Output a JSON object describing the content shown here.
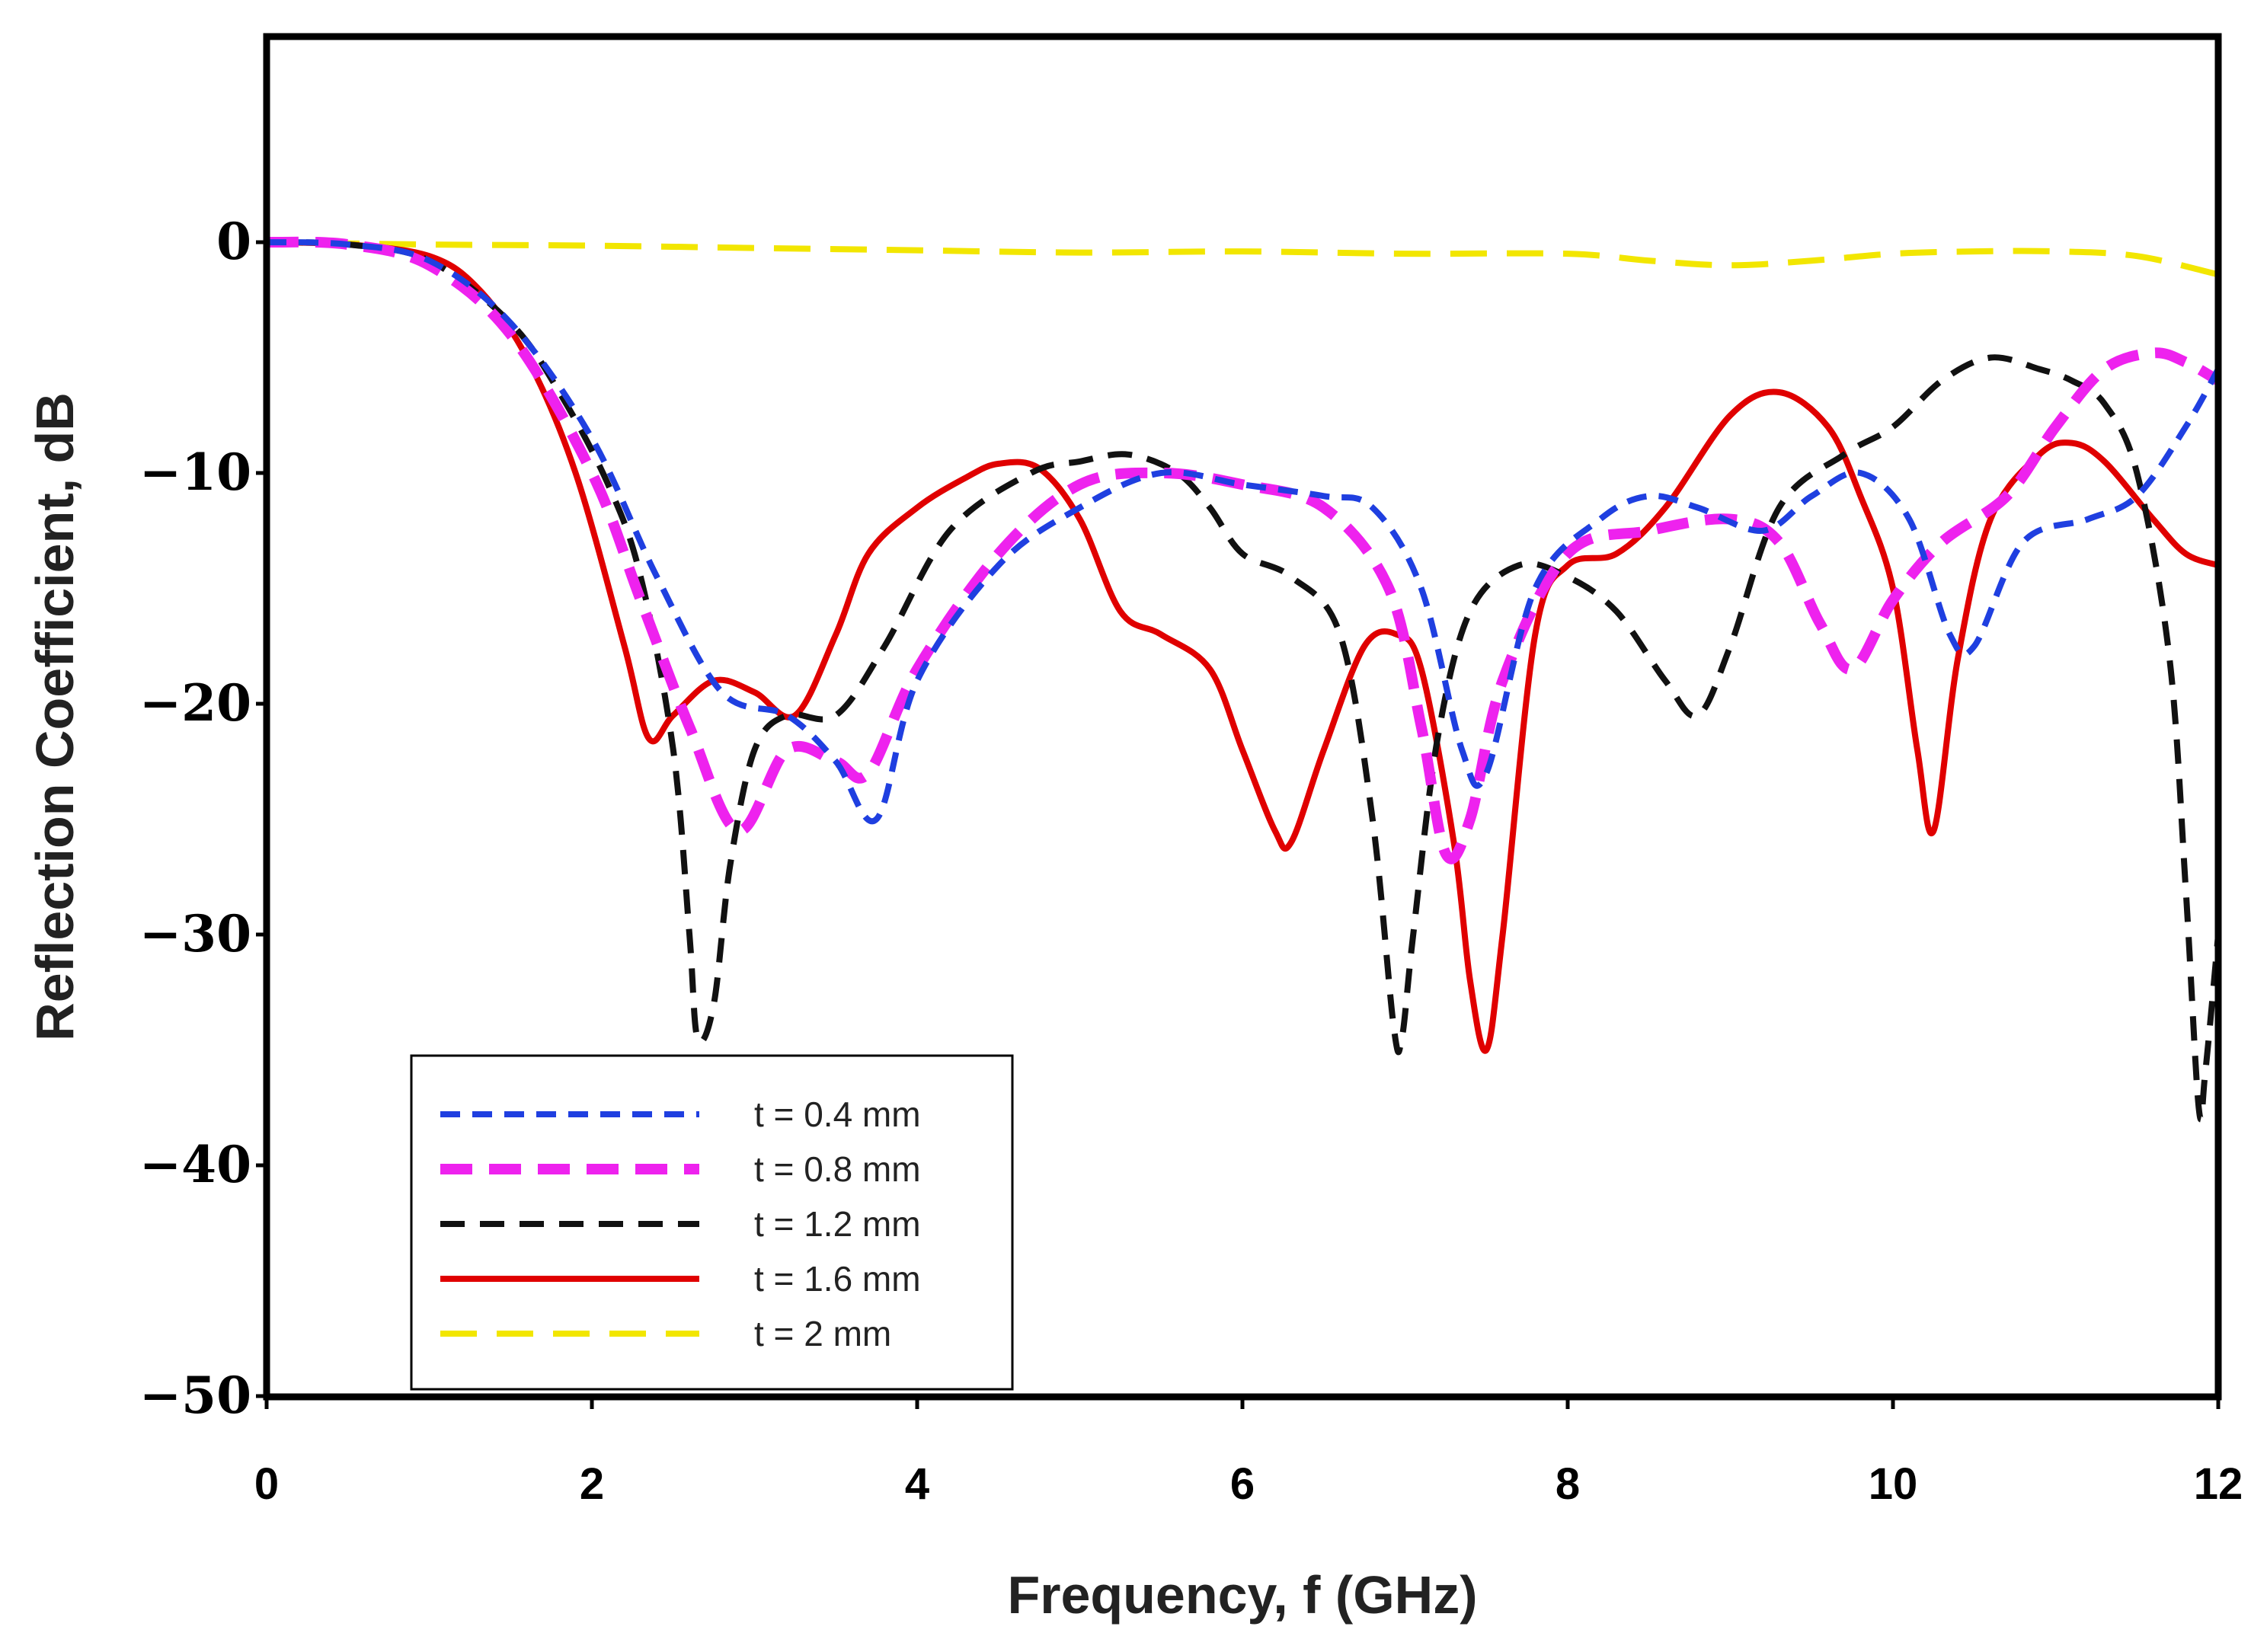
{
  "chart_data": {
    "type": "line",
    "title": "",
    "xlabel": "Frequency, f (GHz)",
    "ylabel": "Reflection Coefficient, dB",
    "xlim": [
      0,
      12
    ],
    "ylim": [
      -50,
      10
    ],
    "xticks": [
      0,
      2,
      4,
      6,
      8,
      10,
      12
    ],
    "yticks": [
      0,
      -10,
      -20,
      -30,
      -40,
      -50
    ],
    "xtick_labels": [
      "0",
      "2",
      "4",
      "6",
      "8",
      "10",
      "12"
    ],
    "ytick_labels": [
      "0",
      "−10",
      "−20",
      "−30",
      "−40",
      "−50"
    ],
    "grid": false,
    "legend_position": "bottom-left",
    "series": [
      {
        "name": "t = 0.4 mm",
        "color": "#1f3fe0",
        "style": "dashed",
        "x": [
          0,
          0.5,
          1.0,
          1.5,
          2.0,
          2.4,
          2.8,
          3.2,
          3.5,
          3.75,
          4.0,
          4.5,
          5.0,
          5.5,
          6.0,
          6.5,
          6.8,
          7.1,
          7.35,
          7.5,
          7.8,
          8.2,
          8.5,
          8.8,
          9.2,
          9.5,
          9.8,
          10.1,
          10.35,
          10.5,
          10.8,
          11.2,
          11.5,
          11.8,
          12.0
        ],
        "y": [
          0,
          -0.1,
          -0.8,
          -3.5,
          -8.5,
          -14.5,
          -19.5,
          -20.5,
          -22.5,
          -25,
          -19,
          -14,
          -11.5,
          -10,
          -10.5,
          -11,
          -11.5,
          -15,
          -22,
          -23,
          -15,
          -12,
          -11,
          -11.5,
          -12.5,
          -11,
          -10,
          -12,
          -17,
          -17.5,
          -13,
          -12,
          -11,
          -8,
          -5.5
        ]
      },
      {
        "name": "t = 0.8 mm",
        "color": "#ee22ee",
        "style": "dashed",
        "x": [
          0,
          0.5,
          1.0,
          1.5,
          2.0,
          2.3,
          2.6,
          2.9,
          3.2,
          3.5,
          3.7,
          4.0,
          4.5,
          5.0,
          5.5,
          6.0,
          6.5,
          6.9,
          7.1,
          7.25,
          7.4,
          7.6,
          8.0,
          8.5,
          9.0,
          9.3,
          9.55,
          9.75,
          10.0,
          10.3,
          10.7,
          11.0,
          11.3,
          11.6,
          11.8,
          12.0
        ],
        "y": [
          0,
          -0.1,
          -1.0,
          -4,
          -10,
          -15.5,
          -21,
          -25.5,
          -22,
          -22.5,
          -23,
          -18.5,
          -13.5,
          -10.5,
          -10,
          -10.5,
          -11.5,
          -15,
          -21,
          -26.5,
          -25,
          -19,
          -13.5,
          -12.5,
          -12,
          -13,
          -16.5,
          -18.5,
          -15.5,
          -13,
          -11,
          -8,
          -5.5,
          -4.8,
          -5.2,
          -6
        ]
      },
      {
        "name": "t = 1.2 mm",
        "color": "#111111",
        "style": "dashed",
        "x": [
          0,
          0.5,
          1.0,
          1.5,
          1.8,
          2.1,
          2.3,
          2.5,
          2.6,
          2.65,
          2.75,
          2.85,
          3.0,
          3.2,
          3.5,
          3.8,
          4.2,
          4.7,
          5.0,
          5.3,
          5.6,
          5.8,
          6.0,
          6.3,
          6.6,
          6.8,
          6.93,
          6.98,
          7.05,
          7.2,
          7.4,
          7.7,
          8.0,
          8.3,
          8.6,
          8.8,
          9.0,
          9.3,
          9.7,
          10.0,
          10.3,
          10.6,
          10.9,
          11.1,
          11.3,
          11.5,
          11.7,
          11.8,
          11.88,
          11.92,
          12.0
        ],
        "y": [
          0,
          -0.1,
          -0.8,
          -3.5,
          -6.5,
          -10.5,
          -14.5,
          -22,
          -30,
          -34.5,
          -33,
          -27,
          -22,
          -20.5,
          -20.5,
          -17.5,
          -12.5,
          -10,
          -9.5,
          -9.2,
          -10,
          -11.5,
          -13.5,
          -14.5,
          -17,
          -25,
          -34,
          -34.5,
          -30,
          -21.5,
          -16,
          -14,
          -14.5,
          -16,
          -19,
          -20.5,
          -17.5,
          -11.5,
          -9.2,
          -8,
          -6,
          -5,
          -5.5,
          -6,
          -7,
          -10,
          -18,
          -28,
          -37.5,
          -36,
          -30
        ]
      },
      {
        "name": "t = 1.6 mm",
        "color": "#e00000",
        "style": "solid",
        "x": [
          0,
          0.5,
          1.0,
          1.3,
          1.6,
          1.9,
          2.2,
          2.35,
          2.5,
          2.75,
          3.0,
          3.25,
          3.5,
          3.7,
          4.0,
          4.3,
          4.5,
          4.75,
          5.0,
          5.25,
          5.5,
          5.8,
          6.0,
          6.2,
          6.3,
          6.5,
          6.75,
          6.95,
          7.1,
          7.3,
          7.4,
          7.5,
          7.6,
          7.8,
          8.0,
          8.3,
          8.6,
          9.0,
          9.3,
          9.6,
          9.8,
          10.0,
          10.15,
          10.25,
          10.4,
          10.6,
          10.9,
          11.1,
          11.3,
          11.6,
          11.8,
          12.0
        ],
        "y": [
          0,
          -0.1,
          -0.6,
          -2,
          -5,
          -10,
          -17.5,
          -21.5,
          -20.5,
          -19,
          -19.5,
          -20.5,
          -17,
          -13.5,
          -11.5,
          -10.2,
          -9.6,
          -9.8,
          -12,
          -16,
          -17,
          -18.5,
          -22,
          -25.5,
          -26,
          -22,
          -17.5,
          -17,
          -18.5,
          -26,
          -32,
          -35,
          -30,
          -17,
          -14,
          -13.5,
          -11.5,
          -7.5,
          -6.5,
          -8,
          -11,
          -15,
          -22,
          -25.5,
          -18,
          -12,
          -9.2,
          -8.7,
          -9.5,
          -12,
          -13.5,
          -14
        ]
      },
      {
        "name": "t = 2 mm",
        "color": "#f2e600",
        "style": "dashed",
        "x": [
          0,
          1,
          2,
          3,
          4,
          5,
          6,
          7,
          8,
          8.5,
          9.0,
          9.5,
          10.0,
          10.5,
          11.0,
          11.5,
          12.0
        ],
        "y": [
          0,
          -0.1,
          -0.15,
          -0.25,
          -0.35,
          -0.45,
          -0.4,
          -0.5,
          -0.5,
          -0.8,
          -1.0,
          -0.8,
          -0.5,
          -0.4,
          -0.4,
          -0.6,
          -1.4
        ]
      }
    ]
  }
}
